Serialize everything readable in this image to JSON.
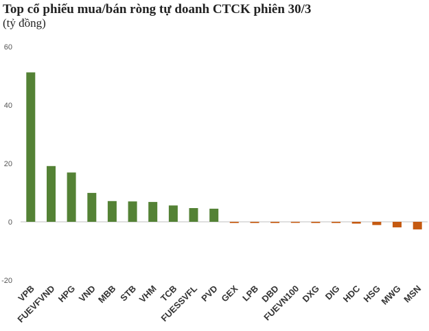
{
  "chart_data": {
    "type": "bar",
    "title": "Top cổ phiếu mua/bán ròng tự doanh CTCK phiên 30/3",
    "subtitle": "(tỷ đồng)",
    "xlabel": "",
    "ylabel": "",
    "ylim": [
      -20,
      60
    ],
    "yticks": [
      "60",
      "40",
      "20",
      "0",
      "-20"
    ],
    "grid": false,
    "categories": [
      "VPB",
      "FUEVFVND",
      "HPG",
      "VND",
      "MBB",
      "STB",
      "VHM",
      "TCB",
      "FUESSVFL",
      "PVD",
      "GEX",
      "LPB",
      "DBD",
      "FUEVN100",
      "DXG",
      "DIG",
      "HDC",
      "HSG",
      "MWG",
      "MSN"
    ],
    "values": [
      51.2,
      19.1,
      16.9,
      9.9,
      7.1,
      7.0,
      6.8,
      5.6,
      4.7,
      4.5,
      -0.4,
      -0.4,
      -0.4,
      -0.3,
      -0.4,
      -0.4,
      -0.6,
      -1.1,
      -1.9,
      -2.6
    ],
    "colors": {
      "positive": "#548235",
      "negative": "#c55a11",
      "axis": "#bfbfbf"
    }
  }
}
